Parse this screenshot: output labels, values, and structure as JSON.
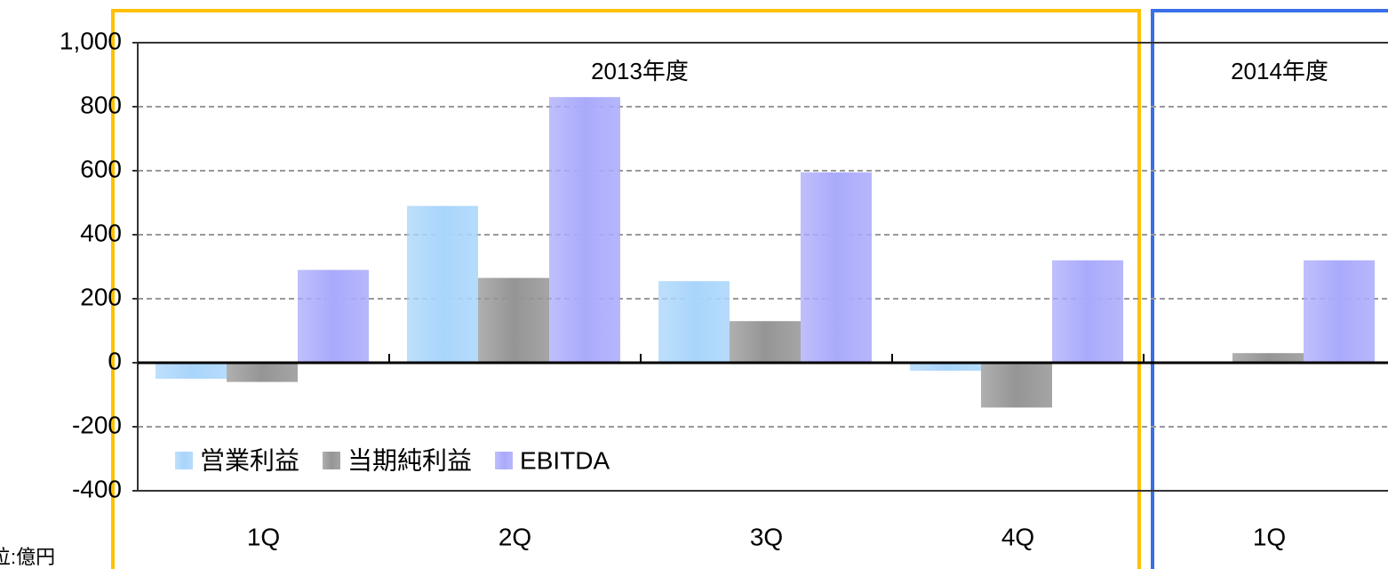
{
  "chart_data": {
    "type": "bar",
    "categories": [
      "1Q",
      "2Q",
      "3Q",
      "4Q",
      "1Q"
    ],
    "series": [
      {
        "name": "営業利益",
        "color": "#a9d5fb",
        "values": [
          -50,
          490,
          255,
          -25,
          0
        ]
      },
      {
        "name": "当期純利益",
        "color": "#959595",
        "values": [
          -60,
          265,
          130,
          -140,
          30
        ]
      },
      {
        "name": "EBITDA",
        "color": "#aaaafc",
        "values": [
          290,
          830,
          595,
          320,
          320
        ]
      }
    ],
    "ylim": [
      -400,
      1000
    ],
    "yticks": [
      -400,
      -200,
      0,
      200,
      400,
      600,
      800,
      {
        "value": 1000,
        "label": "1,000"
      }
    ],
    "negative_tick_color": "#ff0000",
    "grid": true,
    "legend": "lower left",
    "annotations": [
      "2013年度",
      "2014年度",
      "単位:億円"
    ]
  }
}
